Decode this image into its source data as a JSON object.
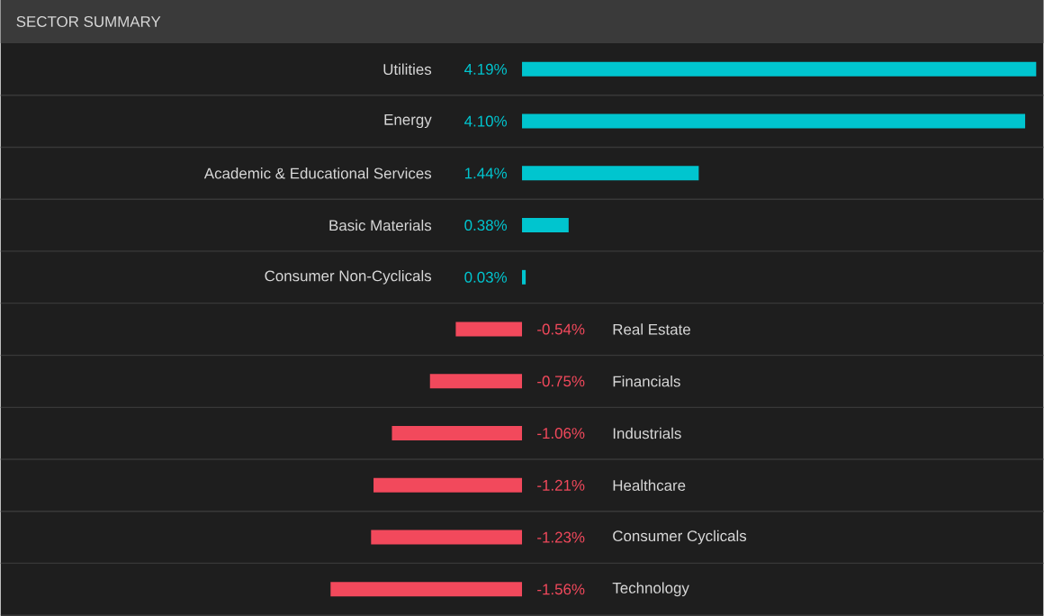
{
  "chart_data": {
    "type": "bar",
    "orientation": "horizontal",
    "title": "SECTOR SUMMARY",
    "categories": [
      "Utilities",
      "Energy",
      "Academic & Educational Services",
      "Basic Materials",
      "Consumer Non-Cyclicals",
      "Real Estate",
      "Financials",
      "Industrials",
      "Healthcare",
      "Consumer Cyclicals",
      "Technology"
    ],
    "values": [
      4.19,
      4.1,
      1.44,
      0.38,
      0.03,
      -0.54,
      -0.75,
      -1.06,
      -1.21,
      -1.23,
      -1.56
    ],
    "colors": [
      "#00c5cf",
      "#00c5cf",
      "#00c5cf",
      "#00c5cf",
      "#00c5cf",
      "#f2495c",
      "#f2495c",
      "#f2495c",
      "#f2495c",
      "#f2495c",
      "#f2495c"
    ],
    "value_labels": [
      "4.19%",
      "4.10%",
      "1.44%",
      "0.38%",
      "0.03%",
      "-0.54%",
      "-0.75%",
      "-1.06%",
      "-1.21%",
      "-1.23%",
      "-1.56%"
    ]
  }
}
